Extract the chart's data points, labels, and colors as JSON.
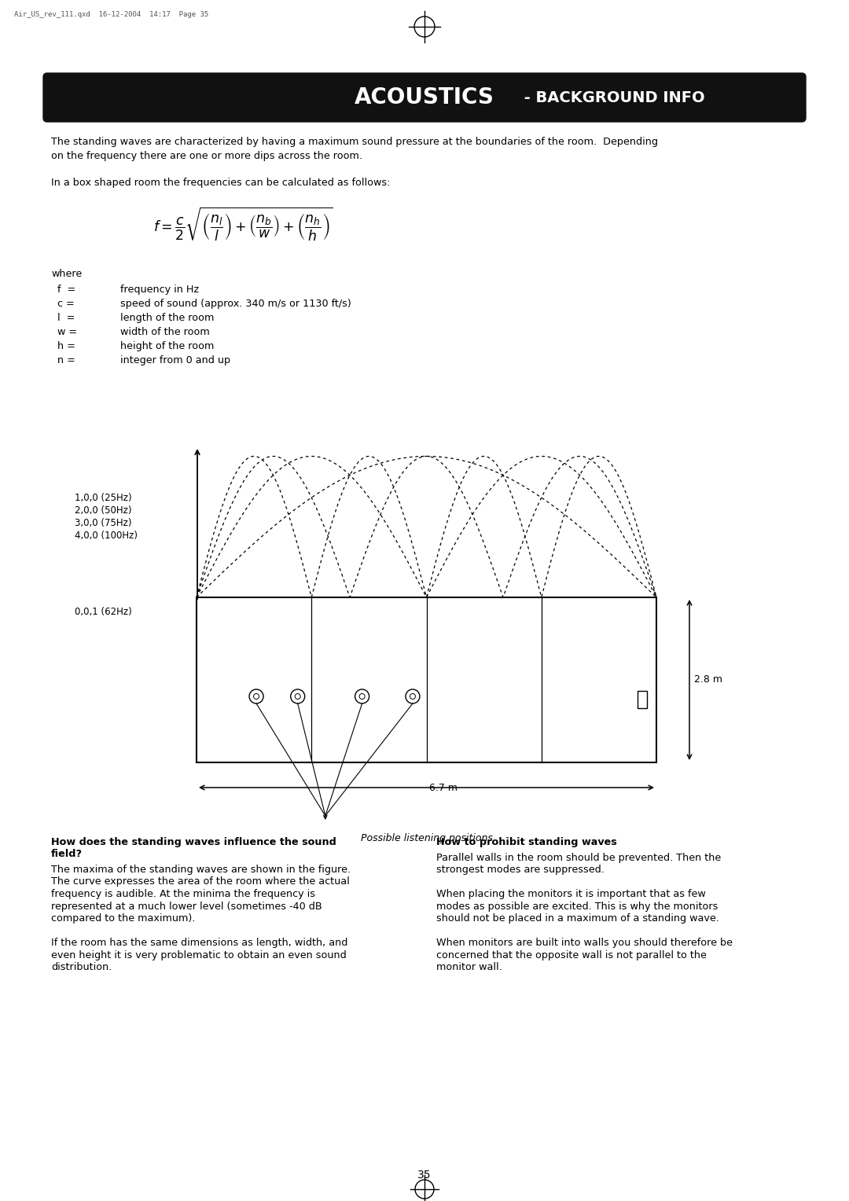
{
  "title_acoustics": "ACOUSTICS",
  "title_bginfo": " - BACKGROUND INFO",
  "header_bg": "#111111",
  "bg_color": "#ffffff",
  "file_label": "Air_US_rev_111.qxd  16-12-2004  14:17  Page 35",
  "page_number": "35",
  "para1_line1": "The standing waves are characterized by having a maximum sound pressure at the boundaries of the room.  Depending",
  "para1_line2": "on the frequency there are one or more dips across the room.",
  "para2": "In a box shaped room the frequencies can be calculated as follows:",
  "where_label": "where",
  "variables": [
    [
      "f  =",
      "frequency in Hz"
    ],
    [
      "c =",
      "speed of sound (approx. 340 m/s or 1130 ft/s)"
    ],
    [
      "l  =",
      "length of the room"
    ],
    [
      "w =",
      "width of the room"
    ],
    [
      "h =",
      "height of the room"
    ],
    [
      "n =",
      "integer from 0 and up"
    ]
  ],
  "wave_labels_lines": [
    "1,0,0 (25Hz)",
    "2,0,0 (50Hz)",
    "3,0,0 (75Hz)",
    "4,0,0 (100Hz)"
  ],
  "room_label": "0,0,1 (62Hz)",
  "dim_67": "6.7 m",
  "dim_28": "2.8 m",
  "caption": "Possible listening positions",
  "left_col_title_line1": "How does the standing waves influence the sound",
  "left_col_title_line2": "field?",
  "left_col_body_lines": [
    "The maxima of the standing waves are shown in the figure.",
    "The curve expresses the area of the room where the actual",
    "frequency is audible. At the minima the frequency is",
    "represented at a much lower level (sometimes -40 dB",
    "compared to the maximum).",
    "",
    "If the room has the same dimensions as length, width, and",
    "even height it is very problematic to obtain an even sound",
    "distribution."
  ],
  "right_col_title": "How to prohibit standing waves",
  "right_col_body_lines": [
    "Parallel walls in the room should be prevented. Then the",
    "strongest modes are suppressed.",
    "",
    "When placing the monitors it is important that as few",
    "modes as possible are excited. This is why the monitors",
    "should not be placed in a maximum of a standing wave.",
    "",
    "When monitors are built into walls you should therefore be",
    "concerned that the opposite wall is not parallel to the",
    "monitor wall."
  ]
}
